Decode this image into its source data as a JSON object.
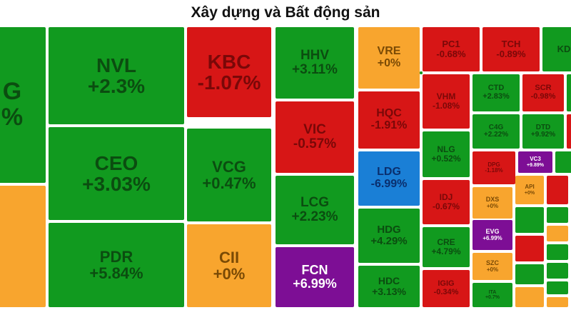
{
  "title": "Xây dựng và Bất động sản",
  "colors": {
    "up": "#119a1f",
    "up_text": "#0b4d10",
    "down": "#d71616",
    "down_text": "#7a0808",
    "ref": "#f8a52e",
    "ref_text": "#7a4a05",
    "ceiling": "#7d0e95",
    "ceiling_text": "#ffffff",
    "floor": "#1a7fd6",
    "floor_text": "#0a2f6e"
  },
  "chart_data": {
    "type": "treemap",
    "title": "Xây dựng và Bất động sản",
    "items": [
      {
        "ticker": "G",
        "change": "%",
        "status": "up"
      },
      {
        "ticker": "NVL",
        "change": "+2.3%",
        "status": "up"
      },
      {
        "ticker": "CEO",
        "change": "+3.03%",
        "status": "up"
      },
      {
        "ticker": "PDR",
        "change": "+5.84%",
        "status": "up"
      },
      {
        "ticker": "KBC",
        "change": "-1.07%",
        "status": "down"
      },
      {
        "ticker": "VCG",
        "change": "+0.47%",
        "status": "up"
      },
      {
        "ticker": "CII",
        "change": "+0%",
        "status": "ref"
      },
      {
        "ticker": "HHV",
        "change": "+3.11%",
        "status": "up"
      },
      {
        "ticker": "VIC",
        "change": "-0.57%",
        "status": "down"
      },
      {
        "ticker": "LCG",
        "change": "+2.23%",
        "status": "up"
      },
      {
        "ticker": "FCN",
        "change": "+6.99%",
        "status": "ceiling"
      },
      {
        "ticker": "VRE",
        "change": "+0%",
        "status": "ref"
      },
      {
        "ticker": "HQC",
        "change": "-1.91%",
        "status": "down"
      },
      {
        "ticker": "LDG",
        "change": "-6.99%",
        "status": "floor"
      },
      {
        "ticker": "HDG",
        "change": "+4.29%",
        "status": "up"
      },
      {
        "ticker": "HDC",
        "change": "+3.13%",
        "status": "up"
      },
      {
        "ticker": "PC1",
        "change": "-0.68%",
        "status": "down"
      },
      {
        "ticker": "VHM",
        "change": "-1.08%",
        "status": "down"
      },
      {
        "ticker": "NLG",
        "change": "+0.52%",
        "status": "up"
      },
      {
        "ticker": "IDJ",
        "change": "-0.67%",
        "status": "down"
      },
      {
        "ticker": "CRE",
        "change": "+4.79%",
        "status": "up"
      },
      {
        "ticker": "IGIG",
        "change": "-0.34%",
        "status": "down"
      },
      {
        "ticker": "TCH",
        "change": "-0.89%",
        "status": "down"
      },
      {
        "ticker": "CTD",
        "change": "+2.83%",
        "status": "up"
      },
      {
        "ticker": "SCR",
        "change": "-0.98%",
        "status": "down"
      },
      {
        "ticker": "C4G",
        "change": "+2.22%",
        "status": "up"
      },
      {
        "ticker": "DTD",
        "change": "+9.92%",
        "status": "up"
      },
      {
        "ticker": "DPG",
        "change": "-1.18%",
        "status": "down"
      },
      {
        "ticker": "VC3",
        "change": "+9.89%",
        "status": "ceiling"
      },
      {
        "ticker": "DXS",
        "change": "+0%",
        "status": "ref"
      },
      {
        "ticker": "API",
        "change": "+0%",
        "status": "ref"
      },
      {
        "ticker": "EVG",
        "change": "+6.99%",
        "status": "ceiling"
      },
      {
        "ticker": "SZC",
        "change": "+0%",
        "status": "ref"
      },
      {
        "ticker": "ITA",
        "change": "+0.7%",
        "status": "up"
      },
      {
        "ticker": "KD",
        "change": "",
        "status": "up"
      },
      {
        "ticker": "",
        "change": "",
        "status": "up"
      },
      {
        "ticker": "",
        "change": "",
        "status": "down"
      },
      {
        "ticker": "",
        "change": "",
        "status": "up"
      },
      {
        "ticker": "",
        "change": "",
        "status": "down"
      },
      {
        "ticker": "",
        "change": "",
        "status": "up"
      },
      {
        "ticker": "",
        "change": "",
        "status": "down"
      },
      {
        "ticker": "",
        "change": "",
        "status": "up"
      },
      {
        "ticker": "",
        "change": "",
        "status": "ref"
      },
      {
        "ticker": "",
        "change": "",
        "status": "up"
      },
      {
        "ticker": "",
        "change": "",
        "status": "ref"
      },
      {
        "ticker": "",
        "change": "",
        "status": "up"
      },
      {
        "ticker": "",
        "change": "",
        "status": "up"
      },
      {
        "ticker": "",
        "change": "",
        "status": "up"
      },
      {
        "ticker": "",
        "change": "",
        "status": "ref"
      },
      {
        "ticker": "",
        "change": "",
        "status": "up"
      },
      {
        "ticker": "",
        "change": "",
        "status": "up"
      },
      {
        "ticker": "",
        "change": "",
        "status": "down"
      },
      {
        "ticker": "",
        "change": "",
        "status": "up"
      },
      {
        "ticker": "",
        "change": "",
        "status": "up"
      },
      {
        "ticker": "",
        "change": "",
        "status": "up"
      },
      {
        "ticker": "",
        "change": "",
        "status": "down"
      },
      {
        "ticker": "",
        "change": "",
        "status": "ref"
      },
      {
        "ticker": "",
        "change": "",
        "status": "down"
      },
      {
        "ticker": "",
        "change": "",
        "status": "down"
      },
      {
        "ticker": "",
        "change": "",
        "status": "up"
      },
      {
        "ticker": "",
        "change": "",
        "status": "ref"
      },
      {
        "ticker": "",
        "change": "",
        "status": "up"
      }
    ]
  }
}
